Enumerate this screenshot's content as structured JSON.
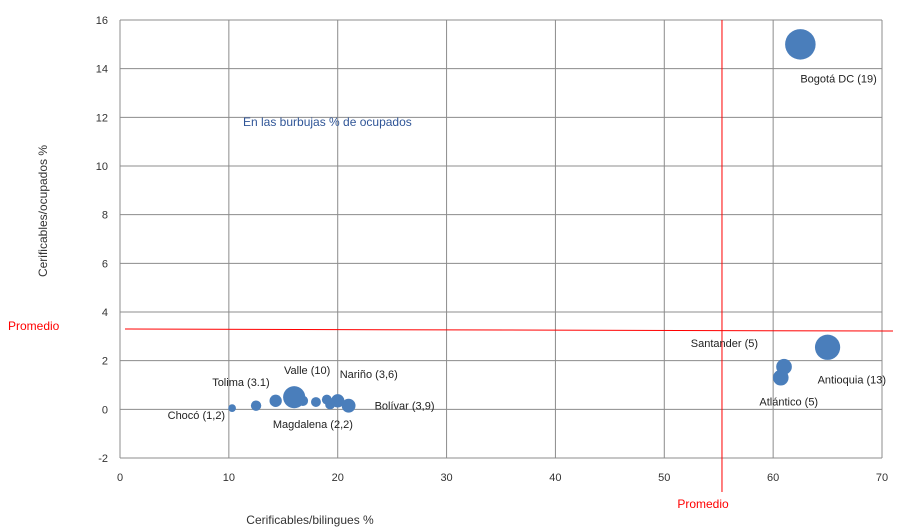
{
  "chart_data": {
    "type": "scatter",
    "subtype": "bubble",
    "xlabel": "Cerificables/bilingues %",
    "ylabel": "Cerificables/ocupados %",
    "xlim": [
      0,
      70
    ],
    "ylim": [
      -2,
      16
    ],
    "x_ticks": [
      0,
      10,
      20,
      30,
      40,
      50,
      60,
      70
    ],
    "y_ticks": [
      -2,
      0,
      2,
      4,
      6,
      8,
      10,
      12,
      14,
      16
    ],
    "grid": true,
    "marker_color": "#4a7ebb",
    "annotation": "En las burbujas % de ocupados",
    "averages": {
      "label": "Promedio",
      "color": "#ff0000",
      "x": 55.3,
      "y": 3.3
    },
    "points": [
      {
        "label": "Bogotá DC (19)",
        "x": 62.5,
        "y": 15.0,
        "size": 19
      },
      {
        "label": "Antioquia (13)",
        "x": 65.0,
        "y": 2.55,
        "size": 13
      },
      {
        "label": "Santander (5)",
        "x": 61.0,
        "y": 1.75,
        "size": 5
      },
      {
        "label": "Atlántico (5)",
        "x": 60.7,
        "y": 1.3,
        "size": 5
      },
      {
        "label": "Valle (10)",
        "x": 16.0,
        "y": 0.5,
        "size": 10
      },
      {
        "label": "Nariño (3,6)",
        "x": 20.0,
        "y": 0.35,
        "size": 3.6
      },
      {
        "label": "Bolívar (3,9)",
        "x": 21.0,
        "y": 0.15,
        "size": 3.9
      },
      {
        "label": "Tolima (3.1)",
        "x": 14.3,
        "y": 0.35,
        "size": 3.1
      },
      {
        "label": "Magdalena (2,2)",
        "x": 16.8,
        "y": 0.35,
        "size": 2.2
      },
      {
        "label": "Chocó (1,2)",
        "x": 10.3,
        "y": 0.05,
        "size": 1.2
      },
      {
        "label": "",
        "x": 12.5,
        "y": 0.15,
        "size": 2.2
      },
      {
        "label": "",
        "x": 18.0,
        "y": 0.3,
        "size": 2.0
      },
      {
        "label": "",
        "x": 19.0,
        "y": 0.4,
        "size": 2.0
      },
      {
        "label": "",
        "x": 19.3,
        "y": 0.2,
        "size": 2.0
      }
    ]
  }
}
